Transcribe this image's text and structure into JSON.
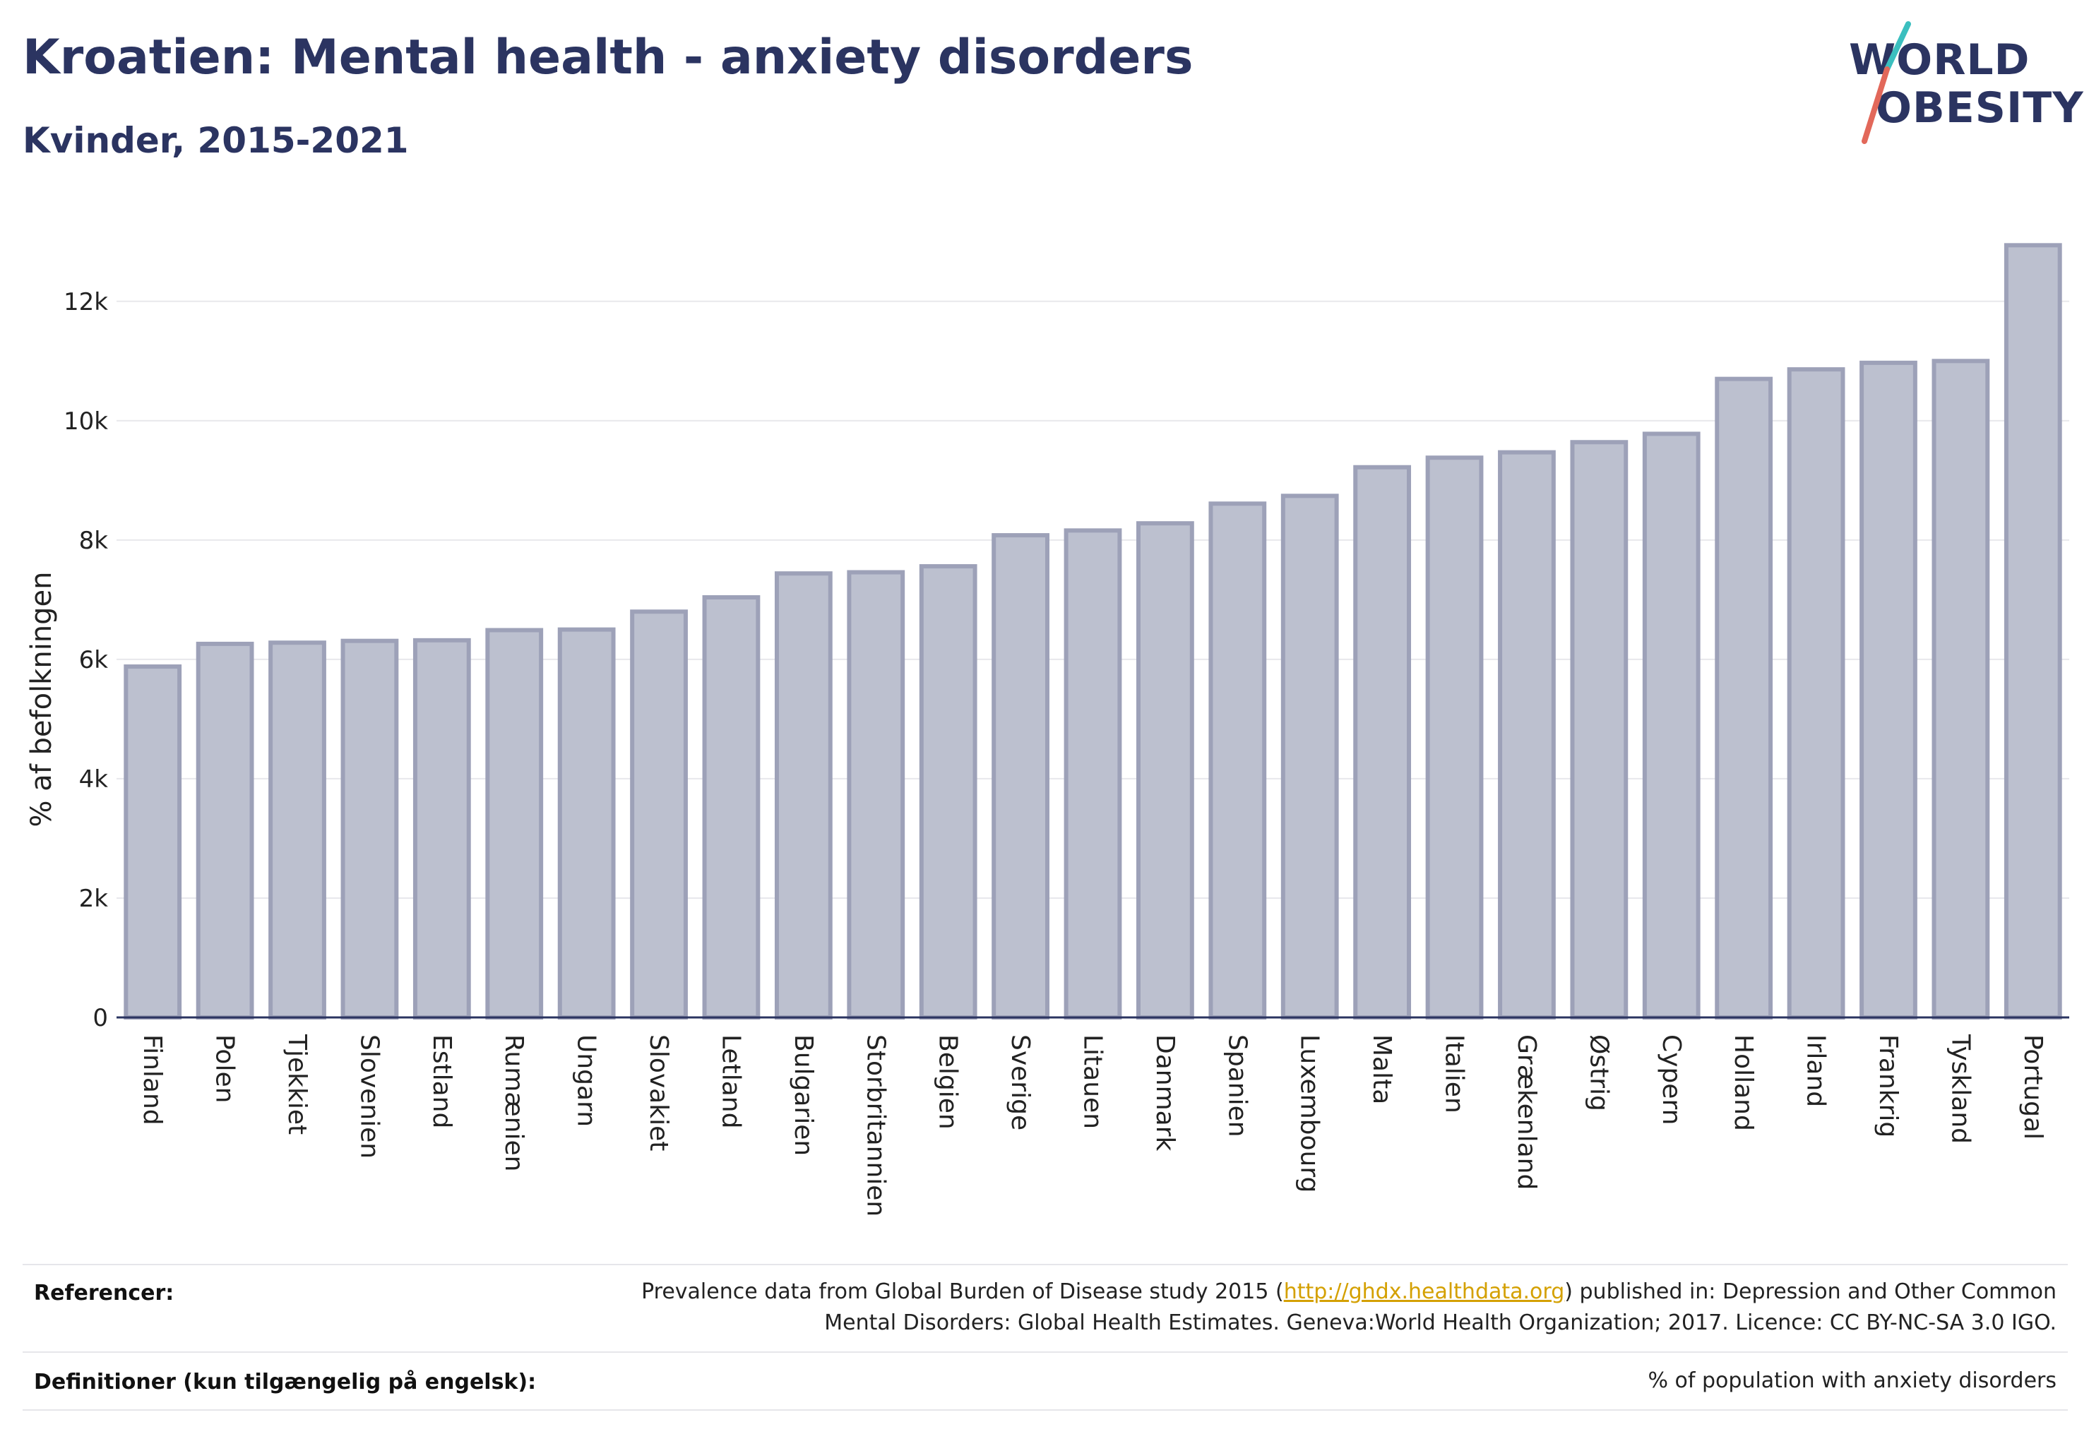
{
  "header": {
    "title": "Kroatien: Mental health - anxiety disorders",
    "subtitle": "Kvinder, 2015-2021"
  },
  "logo": {
    "line1": "WORLD",
    "line2": "OBESITY",
    "accent_teal": "#3bbfbf",
    "accent_red": "#e2685a"
  },
  "chart_data": {
    "type": "bar",
    "ylabel": "% af befolkningen",
    "xlabel": "",
    "ylim": [
      0,
      13500
    ],
    "yticks": [
      0,
      2000,
      4000,
      6000,
      8000,
      10000,
      12000
    ],
    "ytick_labels": [
      "0",
      "2k",
      "4k",
      "6k",
      "8k",
      "10k",
      "12k"
    ],
    "grid": true,
    "categories": [
      "Finland",
      "Polen",
      "Tjekkiet",
      "Slovenien",
      "Estland",
      "Rumænien",
      "Ungarn",
      "Slovakiet",
      "Letland",
      "Bulgarien",
      "Storbritannien",
      "Belgien",
      "Sverige",
      "Litauen",
      "Danmark",
      "Spanien",
      "Luxembourg",
      "Malta",
      "Italien",
      "Grækenland",
      "Østrig",
      "Cypern",
      "Holland",
      "Irland",
      "Frankrig",
      "Tyskland",
      "Portugal"
    ],
    "values": [
      5880,
      6260,
      6280,
      6310,
      6320,
      6490,
      6500,
      6800,
      7040,
      7440,
      7460,
      7560,
      8080,
      8160,
      8280,
      8610,
      8740,
      9220,
      9380,
      9470,
      9640,
      9780,
      10700,
      10860,
      10970,
      11000,
      12940
    ],
    "bar_fill": "#bcc0cf",
    "bar_stroke": "#9da1b8"
  },
  "footer": {
    "references_label": "Referencer:",
    "references_text_1": "Prevalence data from Global Burden of Disease study 2015 (",
    "references_link": "http://ghdx.healthdata.org",
    "references_text_2": ") published in: Depression and Other Common",
    "references_text_3": "Mental Disorders: Global Health Estimates. Geneva:World Health Organization; 2017. Licence: CC BY-NC-SA 3.0 IGO.",
    "definitions_label": "Definitioner (kun tilgængelig på engelsk):",
    "definitions_text": "% of population with anxiety disorders"
  }
}
